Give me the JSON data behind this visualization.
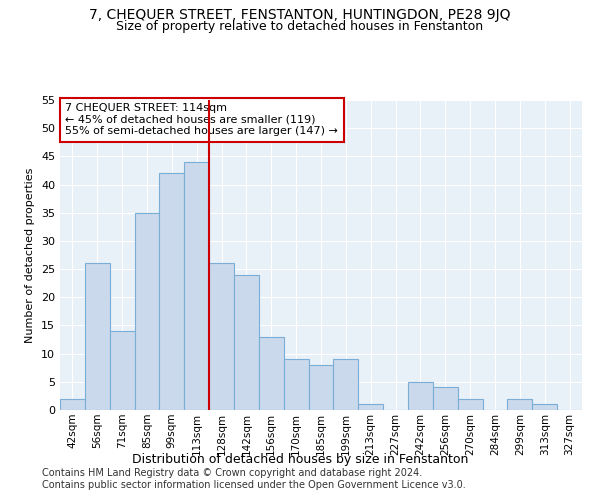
{
  "title": "7, CHEQUER STREET, FENSTANTON, HUNTINGDON, PE28 9JQ",
  "subtitle": "Size of property relative to detached houses in Fenstanton",
  "xlabel": "Distribution of detached houses by size in Fenstanton",
  "ylabel": "Number of detached properties",
  "bar_labels": [
    "42sqm",
    "56sqm",
    "71sqm",
    "85sqm",
    "99sqm",
    "113sqm",
    "128sqm",
    "142sqm",
    "156sqm",
    "170sqm",
    "185sqm",
    "199sqm",
    "213sqm",
    "227sqm",
    "242sqm",
    "256sqm",
    "270sqm",
    "284sqm",
    "299sqm",
    "313sqm",
    "327sqm"
  ],
  "bar_values": [
    2,
    26,
    14,
    35,
    42,
    44,
    26,
    24,
    13,
    9,
    8,
    9,
    1,
    0,
    5,
    4,
    2,
    0,
    2,
    1,
    0
  ],
  "bar_color": "#cad9ec",
  "bar_edge_color": "#7aaed6",
  "vline_x": 5.5,
  "vline_color": "#cc0000",
  "annotation_title": "7 CHEQUER STREET: 114sqm",
  "annotation_line1": "← 45% of detached houses are smaller (119)",
  "annotation_line2": "55% of semi-detached houses are larger (147) →",
  "annotation_box_color": "#cc0000",
  "ylim": [
    0,
    55
  ],
  "yticks": [
    0,
    5,
    10,
    15,
    20,
    25,
    30,
    35,
    40,
    45,
    50,
    55
  ],
  "bg_color": "#e8f0f8",
  "footer1": "Contains HM Land Registry data © Crown copyright and database right 2024.",
  "footer2": "Contains public sector information licensed under the Open Government Licence v3.0.",
  "title_fontsize": 10,
  "subtitle_fontsize": 9,
  "ylabel_fontsize": 8,
  "xlabel_fontsize": 9,
  "annot_fontsize": 8,
  "tick_fontsize": 7.5,
  "ytick_fontsize": 8,
  "footer_fontsize": 7
}
